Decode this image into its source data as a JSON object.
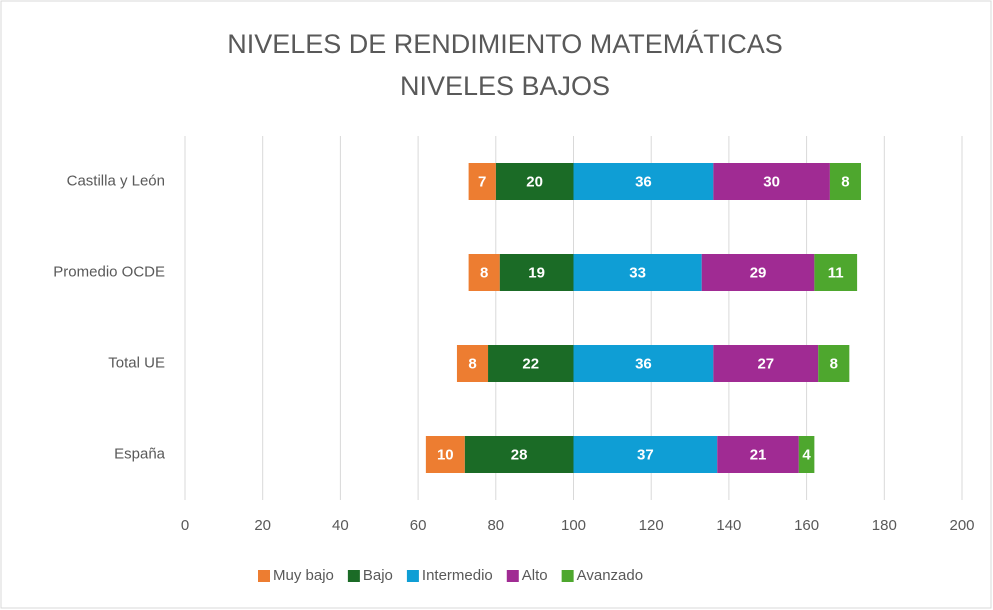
{
  "chart_data": {
    "type": "bar",
    "orientation": "horizontal",
    "stacked": true,
    "title": [
      "NIVELES DE RENDIMIENTO MATEMÁTICAS",
      "NIVELES BAJOS"
    ],
    "categories": [
      "Castilla y León",
      "Promedio OCDE",
      "Total UE",
      "España"
    ],
    "center": 100,
    "series": [
      {
        "name": "Muy bajo",
        "color": "#ed7d31",
        "side": "left",
        "values": [
          7,
          8,
          8,
          10
        ]
      },
      {
        "name": "Bajo",
        "color": "#1b6b26",
        "side": "left",
        "values": [
          20,
          19,
          22,
          28
        ]
      },
      {
        "name": "Intermedio",
        "color": "#0f9ed5",
        "side": "right",
        "values": [
          36,
          33,
          36,
          37
        ]
      },
      {
        "name": "Alto",
        "color": "#a02b93",
        "side": "right",
        "values": [
          30,
          29,
          27,
          21
        ]
      },
      {
        "name": "Avanzado",
        "color": "#4ea72e",
        "side": "right",
        "values": [
          8,
          11,
          8,
          4
        ]
      }
    ],
    "xlim": [
      0,
      200
    ],
    "xticks": [
      0,
      20,
      40,
      60,
      80,
      100,
      120,
      140,
      160,
      180,
      200
    ],
    "grid": true,
    "legend": "bottom"
  }
}
